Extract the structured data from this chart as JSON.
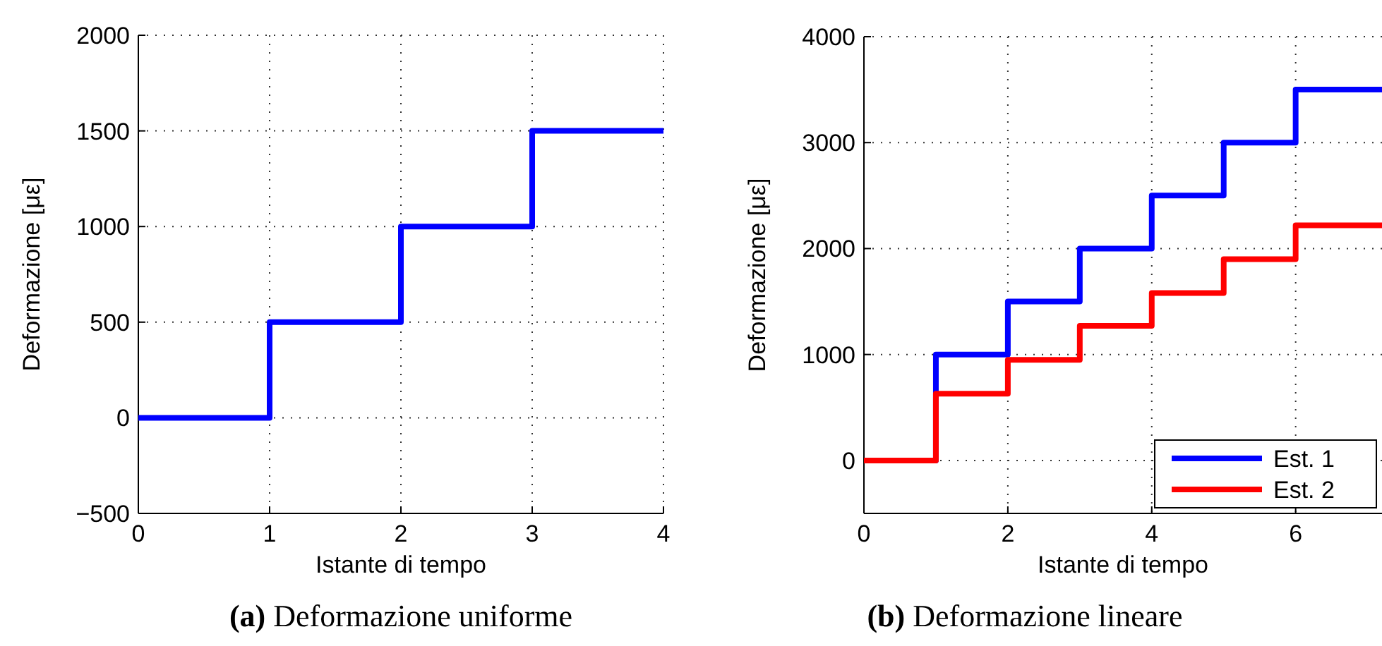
{
  "chart_data": [
    {
      "type": "step",
      "title": "(a) Deformazione uniforme",
      "xlabel": "Istante di tempo",
      "ylabel": "Deformazione [με]",
      "x": [
        0,
        1,
        2,
        3,
        4
      ],
      "series": [
        {
          "color": "#0000ff",
          "values": [
            0,
            500,
            1000,
            1500,
            1500
          ]
        }
      ],
      "xlim": [
        0,
        4
      ],
      "ylim": [
        -500,
        2000
      ],
      "xticks": [
        0,
        1,
        2,
        3,
        4
      ],
      "yticks": [
        -500,
        0,
        500,
        1000,
        1500,
        2000
      ],
      "grid": true,
      "legend": false
    },
    {
      "type": "step",
      "title": "(b) Deformazione lineare",
      "xlabel": "Istante di tempo",
      "ylabel": "Deformazione [με]",
      "x": [
        0,
        1,
        2,
        3,
        4,
        5,
        6,
        7,
        7.2
      ],
      "series": [
        {
          "name": "Est. 1",
          "color": "#0000ff",
          "values": [
            0,
            1000,
            1500,
            2000,
            2500,
            3000,
            3500,
            3500,
            3500
          ]
        },
        {
          "name": "Est. 2",
          "color": "#ff0000",
          "values": [
            0,
            630,
            950,
            1270,
            1580,
            1900,
            2220,
            2220,
            2220
          ]
        }
      ],
      "xlim": [
        0,
        7.2
      ],
      "ylim": [
        -500,
        4000
      ],
      "xticks": [
        0,
        2,
        4,
        6
      ],
      "yticks": [
        0,
        1000,
        2000,
        3000,
        4000
      ],
      "grid": true,
      "legend": "bottom right"
    }
  ]
}
